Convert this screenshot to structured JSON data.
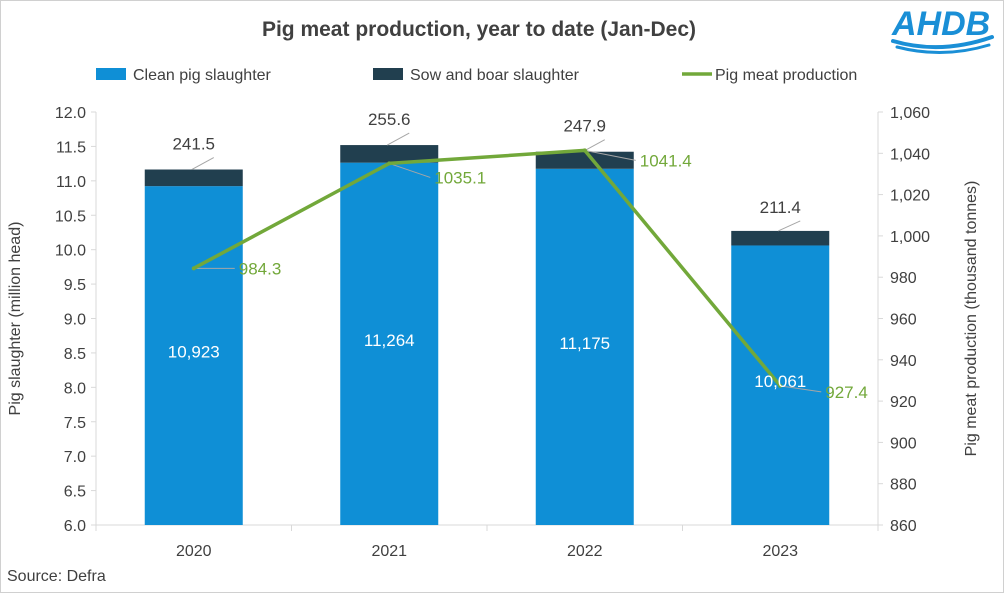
{
  "logo": {
    "text": "AHDB",
    "color": "#1a8fd6"
  },
  "source": "Source: Defra",
  "colors": {
    "clean": "#0f8fd6",
    "sow": "#213f4f",
    "line": "#72a83a",
    "axis_text": "#404040",
    "grid": "#d9d9d9",
    "leader": "#a6a6a6"
  },
  "chart_data": {
    "type": "bar",
    "title": "Pig meat production, year to date (Jan-Dec)",
    "categories": [
      "2020",
      "2021",
      "2022",
      "2023"
    ],
    "legend_position": "top",
    "grid": false,
    "y_left": {
      "label": "Pig slaughter (million head)",
      "lim": [
        6.0,
        12.0
      ],
      "ticks": [
        "6.0",
        "6.5",
        "7.0",
        "7.5",
        "8.0",
        "8.5",
        "9.0",
        "9.5",
        "10.0",
        "10.5",
        "11.0",
        "11.5",
        "12.0"
      ]
    },
    "y_right": {
      "label": "Pig meat production (thousand tonnes)",
      "lim": [
        860,
        1060
      ],
      "ticks": [
        "860",
        "880",
        "900",
        "920",
        "940",
        "960",
        "980",
        "1,000",
        "1,020",
        "1,040",
        "1,060"
      ]
    },
    "series": [
      {
        "name": "Clean pig slaughter",
        "kind": "stacked-bar",
        "axis": "left",
        "unit_note": "thousand head",
        "values": [
          10923,
          11264,
          11175,
          10061
        ],
        "labels": [
          "10,923",
          "11,264",
          "11,175",
          "10,061"
        ]
      },
      {
        "name": "Sow and boar slaughter",
        "kind": "stacked-bar",
        "axis": "left",
        "unit_note": "thousand head",
        "values": [
          241.5,
          255.6,
          247.9,
          211.4
        ],
        "labels": [
          "241.5",
          "255.6",
          "247.9",
          "211.4"
        ]
      },
      {
        "name": "Pig meat production",
        "kind": "line",
        "axis": "right",
        "values": [
          984.3,
          1035.1,
          1041.4,
          927.4
        ],
        "labels": [
          "984.3",
          "1035.1",
          "1041.4",
          "927.4"
        ]
      }
    ]
  }
}
